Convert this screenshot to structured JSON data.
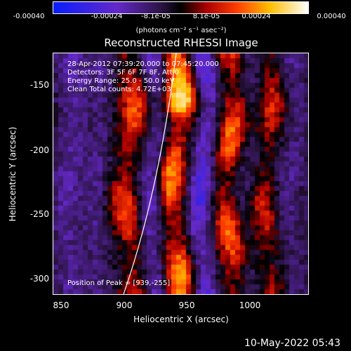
{
  "colorbar": {
    "ticks": [
      "-0.00040",
      "-0.00024",
      "-8.1e-05",
      "8.1e-05",
      "0.00024",
      "0.00040"
    ],
    "unit": "(photons cm⁻² s⁻¹ asec⁻²)",
    "range": [
      -0.0004,
      0.0004
    ]
  },
  "plot": {
    "title": "Reconstructed RHESSI Image",
    "info_lines": [
      "28-Apr-2012 07:39:20.000 to 07:45:20.000",
      "Detectors: 3F 5F 6F 7F 8F, Att 0",
      "Energy Range: 25.0 - 50.0 keV",
      "Clean    Total counts: 4.72E+03"
    ],
    "peak_label": "Position of Peak = [939,-255]",
    "xlabel": "Heliocentric X (arcsec)",
    "ylabel": "Heliocentric Y (arcsec)",
    "xticks": [
      "850",
      "900",
      "950",
      "1000"
    ],
    "yticks": [
      "-150",
      "-200",
      "-250",
      "-300"
    ],
    "xlim": [
      845,
      1045
    ],
    "ylim": [
      -320,
      -130
    ]
  },
  "footer": {
    "timestamp": "10-May-2022 05:43"
  },
  "colors": {
    "background": "#000000",
    "foreground": "#ffffff"
  }
}
